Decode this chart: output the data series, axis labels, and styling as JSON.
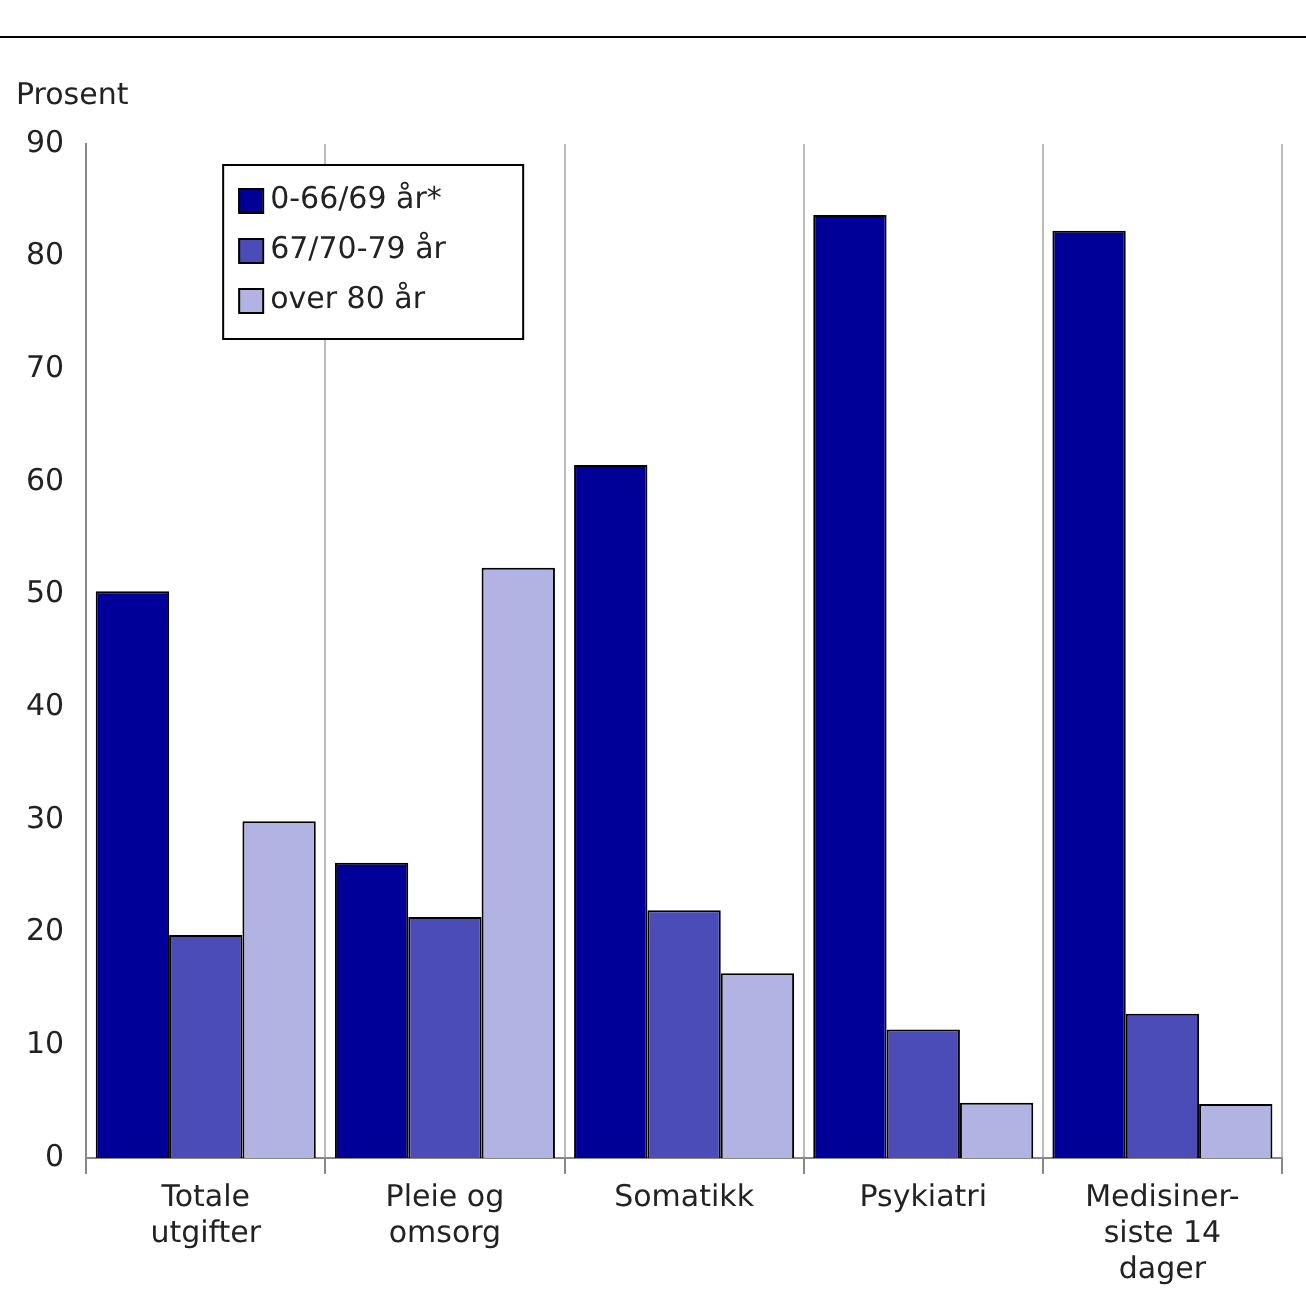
{
  "chart_data": {
    "type": "bar",
    "ylabel": "Prosent",
    "categories": [
      "Totale\nutgifter",
      "Pleie og\nomsorg",
      "Somatikk",
      "Psykiatri",
      "Medisiner-\nsiste 14\ndager"
    ],
    "series": [
      {
        "name": "0-66/69 år*",
        "color": "#000099",
        "values": [
          50.3,
          26.2,
          61.5,
          83.7,
          82.3
        ]
      },
      {
        "name": "67/70-79 år",
        "color": "#4c4cb8",
        "values": [
          19.8,
          21.4,
          22.0,
          11.4,
          12.8
        ]
      },
      {
        "name": "over 80 år",
        "color": "#b3b3e3",
        "values": [
          29.9,
          52.4,
          16.4,
          4.9,
          4.8
        ]
      }
    ],
    "ylim": [
      0,
      90
    ],
    "yticks": [
      0,
      10,
      20,
      30,
      40,
      50,
      60,
      70,
      80,
      90
    ],
    "grid": "x",
    "legend": "top left"
  }
}
